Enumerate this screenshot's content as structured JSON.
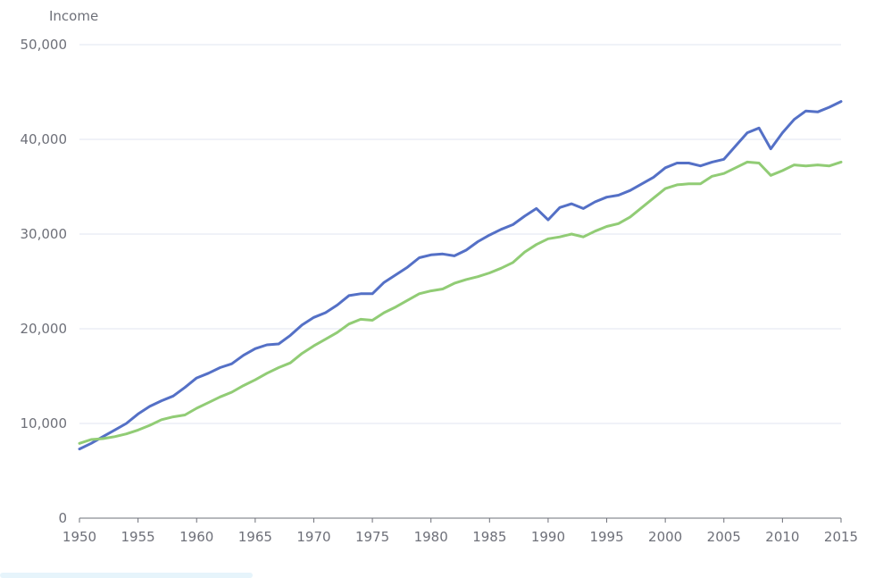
{
  "chart_data": {
    "type": "line",
    "ylabel": "Income",
    "xlabel": "",
    "xlim": [
      1950,
      2015
    ],
    "ylim": [
      0,
      50000
    ],
    "x_ticks": [
      1950,
      1955,
      1960,
      1965,
      1970,
      1975,
      1980,
      1985,
      1990,
      1995,
      2000,
      2005,
      2010,
      2015
    ],
    "y_ticks": [
      0,
      10000,
      20000,
      30000,
      40000,
      50000
    ],
    "y_tick_labels": [
      "0",
      "10,000",
      "20,000",
      "30,000",
      "40,000",
      "50,000"
    ],
    "grid": true,
    "legend": "none",
    "x": [
      1950,
      1951,
      1952,
      1953,
      1954,
      1955,
      1956,
      1957,
      1958,
      1959,
      1960,
      1961,
      1962,
      1963,
      1964,
      1965,
      1966,
      1967,
      1968,
      1969,
      1970,
      1971,
      1972,
      1973,
      1974,
      1975,
      1976,
      1977,
      1978,
      1979,
      1980,
      1981,
      1982,
      1983,
      1984,
      1985,
      1986,
      1987,
      1988,
      1989,
      1990,
      1991,
      1992,
      1993,
      1994,
      1995,
      1996,
      1997,
      1998,
      1999,
      2000,
      2001,
      2002,
      2003,
      2004,
      2005,
      2006,
      2007,
      2008,
      2009,
      2010,
      2011,
      2012,
      2013,
      2014,
      2015
    ],
    "series": [
      {
        "color": "#5470c6",
        "values": [
          7300,
          7900,
          8600,
          9300,
          10000,
          11000,
          11800,
          12400,
          12900,
          13800,
          14800,
          15300,
          15900,
          16300,
          17200,
          17900,
          18300,
          18400,
          19300,
          20400,
          21200,
          21700,
          22500,
          23500,
          23700,
          23700,
          24900,
          25700,
          26500,
          27500,
          27800,
          27900,
          27700,
          28300,
          29200,
          29900,
          30500,
          31000,
          31900,
          32700,
          31500,
          32800,
          33200,
          32700,
          33400,
          33900,
          34100,
          34600,
          35300,
          36000,
          37000,
          37500,
          37500,
          37200,
          37600,
          37900,
          39300,
          40700,
          41200,
          39000,
          40700,
          42100,
          43000,
          42900,
          43400,
          44000
        ]
      },
      {
        "color": "#91cc75",
        "values": [
          7900,
          8300,
          8400,
          8600,
          8900,
          9300,
          9800,
          10400,
          10700,
          10900,
          11600,
          12200,
          12800,
          13300,
          14000,
          14600,
          15300,
          15900,
          16400,
          17400,
          18200,
          18900,
          19600,
          20500,
          21000,
          20900,
          21700,
          22300,
          23000,
          23700,
          24000,
          24200,
          24800,
          25200,
          25500,
          25900,
          26400,
          27000,
          28100,
          28900,
          29500,
          29700,
          30000,
          29700,
          30300,
          30800,
          31100,
          31800,
          32800,
          33800,
          34800,
          35200,
          35300,
          35300,
          36100,
          36400,
          37000,
          37600,
          37500,
          36200,
          36700,
          37300,
          37200,
          37300,
          37200,
          37600
        ]
      }
    ]
  }
}
